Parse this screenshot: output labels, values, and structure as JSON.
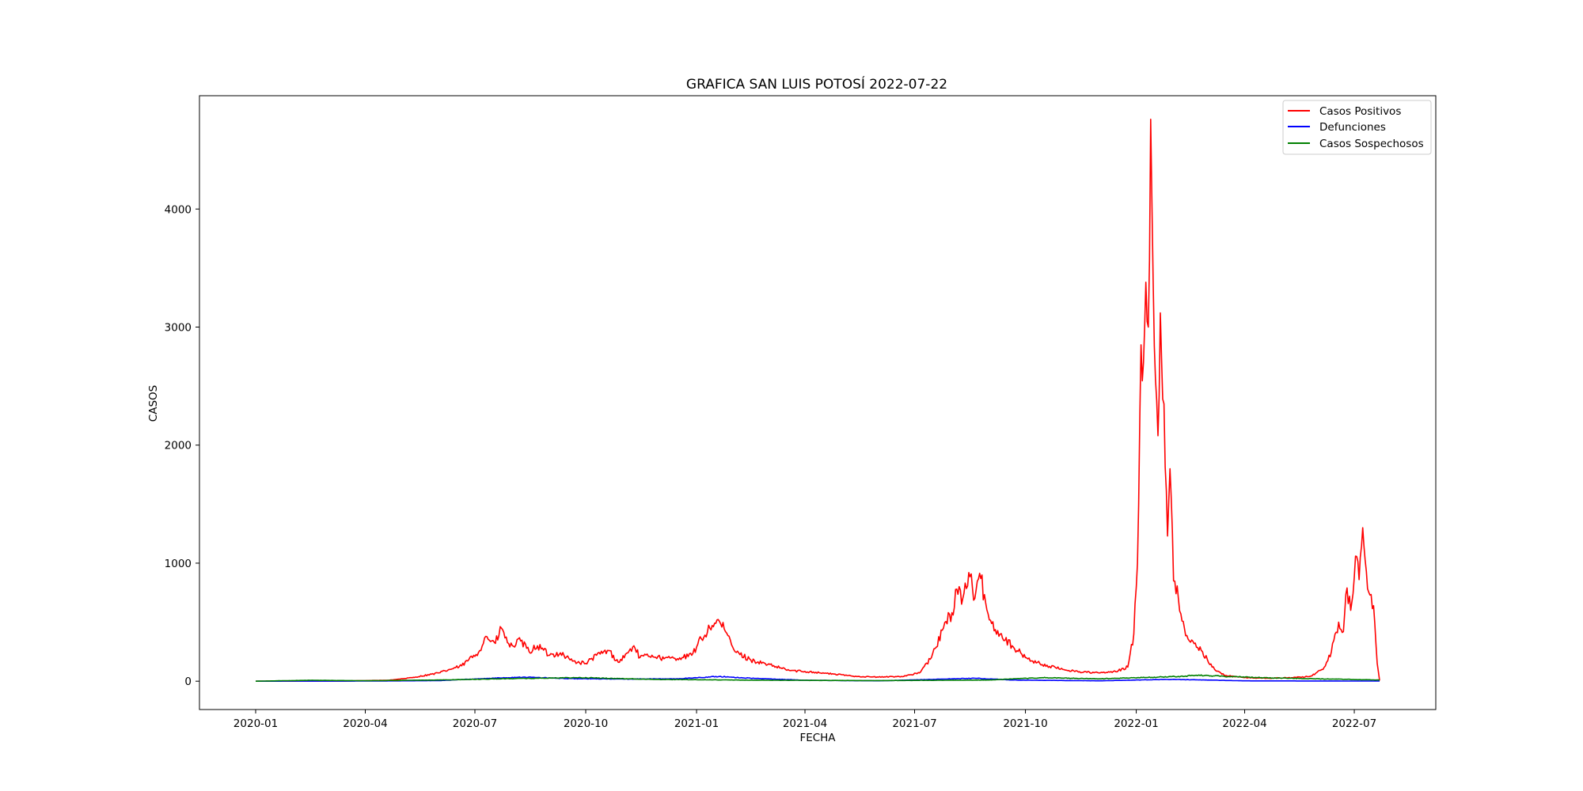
{
  "chart_data": {
    "type": "line",
    "title": "GRAFICA SAN LUIS POTOSÍ 2022-07-22",
    "xlabel": "FECHA",
    "ylabel": "CASOS",
    "x_range": [
      "2020-01-01",
      "2022-07-22"
    ],
    "ylim": [
      -240,
      4960
    ],
    "grid": false,
    "legend_position": "top-right",
    "x_ticks": [
      "2020-01",
      "2020-04",
      "2020-07",
      "2020-10",
      "2021-01",
      "2021-04",
      "2021-07",
      "2021-10",
      "2022-01",
      "2022-04",
      "2022-07"
    ],
    "y_ticks": [
      0,
      1000,
      2000,
      3000,
      4000
    ],
    "series": [
      {
        "name": "Casos Positivos",
        "color": "#ff0000",
        "points": [
          [
            "2020-01-01",
            0
          ],
          [
            "2020-03-15",
            2
          ],
          [
            "2020-04-20",
            8
          ],
          [
            "2020-05-10",
            30
          ],
          [
            "2020-06-01",
            70
          ],
          [
            "2020-06-20",
            130
          ],
          [
            "2020-07-05",
            260
          ],
          [
            "2020-07-10",
            380
          ],
          [
            "2020-07-18",
            320
          ],
          [
            "2020-07-23",
            450
          ],
          [
            "2020-07-30",
            290
          ],
          [
            "2020-08-08",
            340
          ],
          [
            "2020-08-15",
            250
          ],
          [
            "2020-08-22",
            300
          ],
          [
            "2020-09-01",
            220
          ],
          [
            "2020-09-10",
            240
          ],
          [
            "2020-09-20",
            170
          ],
          [
            "2020-10-01",
            150
          ],
          [
            "2020-10-10",
            220
          ],
          [
            "2020-10-20",
            260
          ],
          [
            "2020-10-28",
            160
          ],
          [
            "2020-11-05",
            240
          ],
          [
            "2020-11-10",
            300
          ],
          [
            "2020-11-15",
            200
          ],
          [
            "2020-11-25",
            220
          ],
          [
            "2020-12-05",
            190
          ],
          [
            "2020-12-20",
            200
          ],
          [
            "2020-12-28",
            220
          ],
          [
            "2021-01-05",
            360
          ],
          [
            "2021-01-12",
            450
          ],
          [
            "2021-01-18",
            520
          ],
          [
            "2021-01-25",
            420
          ],
          [
            "2021-02-02",
            250
          ],
          [
            "2021-02-15",
            180
          ],
          [
            "2021-03-01",
            140
          ],
          [
            "2021-03-20",
            90
          ],
          [
            "2021-04-05",
            80
          ],
          [
            "2021-04-25",
            60
          ],
          [
            "2021-05-15",
            40
          ],
          [
            "2021-06-01",
            35
          ],
          [
            "2021-06-20",
            40
          ],
          [
            "2021-07-05",
            70
          ],
          [
            "2021-07-15",
            200
          ],
          [
            "2021-07-25",
            450
          ],
          [
            "2021-08-01",
            580
          ],
          [
            "2021-08-05",
            780
          ],
          [
            "2021-08-10",
            700
          ],
          [
            "2021-08-15",
            920
          ],
          [
            "2021-08-20",
            700
          ],
          [
            "2021-08-25",
            870
          ],
          [
            "2021-09-01",
            520
          ],
          [
            "2021-09-10",
            400
          ],
          [
            "2021-09-20",
            300
          ],
          [
            "2021-10-01",
            200
          ],
          [
            "2021-10-15",
            140
          ],
          [
            "2021-11-01",
            100
          ],
          [
            "2021-11-15",
            80
          ],
          [
            "2021-12-01",
            70
          ],
          [
            "2021-12-15",
            80
          ],
          [
            "2021-12-25",
            120
          ],
          [
            "2021-12-30",
            400
          ],
          [
            "2022-01-02",
            1000
          ],
          [
            "2022-01-05",
            2850
          ],
          [
            "2022-01-07",
            2700
          ],
          [
            "2022-01-09",
            3380
          ],
          [
            "2022-01-11",
            3000
          ],
          [
            "2022-01-13",
            4760
          ],
          [
            "2022-01-15",
            3400
          ],
          [
            "2022-01-17",
            2550
          ],
          [
            "2022-01-19",
            2080
          ],
          [
            "2022-01-21",
            3120
          ],
          [
            "2022-01-24",
            2350
          ],
          [
            "2022-01-27",
            1230
          ],
          [
            "2022-01-29",
            1800
          ],
          [
            "2022-02-01",
            850
          ],
          [
            "2022-02-05",
            700
          ],
          [
            "2022-02-10",
            450
          ],
          [
            "2022-02-15",
            330
          ],
          [
            "2022-02-25",
            250
          ],
          [
            "2022-03-05",
            120
          ],
          [
            "2022-03-15",
            50
          ],
          [
            "2022-04-01",
            30
          ],
          [
            "2022-04-20",
            25
          ],
          [
            "2022-05-10",
            30
          ],
          [
            "2022-05-25",
            40
          ],
          [
            "2022-06-05",
            100
          ],
          [
            "2022-06-12",
            250
          ],
          [
            "2022-06-18",
            500
          ],
          [
            "2022-06-22",
            420
          ],
          [
            "2022-06-25",
            790
          ],
          [
            "2022-06-28",
            600
          ],
          [
            "2022-07-02",
            1060
          ],
          [
            "2022-07-05",
            860
          ],
          [
            "2022-07-08",
            1300
          ],
          [
            "2022-07-11",
            930
          ],
          [
            "2022-07-14",
            730
          ],
          [
            "2022-07-17",
            640
          ],
          [
            "2022-07-20",
            150
          ],
          [
            "2022-07-22",
            5
          ]
        ]
      },
      {
        "name": "Defunciones",
        "color": "#0000ff",
        "points": [
          [
            "2020-01-01",
            0
          ],
          [
            "2020-04-01",
            1
          ],
          [
            "2020-06-01",
            5
          ],
          [
            "2020-07-15",
            25
          ],
          [
            "2020-08-10",
            35
          ],
          [
            "2020-09-15",
            22
          ],
          [
            "2020-11-01",
            18
          ],
          [
            "2020-12-15",
            20
          ],
          [
            "2021-01-20",
            40
          ],
          [
            "2021-02-15",
            25
          ],
          [
            "2021-04-01",
            8
          ],
          [
            "2021-06-01",
            3
          ],
          [
            "2021-08-20",
            25
          ],
          [
            "2021-09-20",
            10
          ],
          [
            "2021-12-01",
            3
          ],
          [
            "2022-01-25",
            15
          ],
          [
            "2022-02-20",
            12
          ],
          [
            "2022-04-01",
            3
          ],
          [
            "2022-07-22",
            1
          ]
        ]
      },
      {
        "name": "Casos Sospechosos",
        "color": "#008000",
        "points": [
          [
            "2020-01-01",
            0
          ],
          [
            "2020-02-15",
            8
          ],
          [
            "2020-04-01",
            4
          ],
          [
            "2020-06-01",
            10
          ],
          [
            "2020-07-20",
            20
          ],
          [
            "2020-09-25",
            30
          ],
          [
            "2020-12-01",
            15
          ],
          [
            "2021-03-01",
            8
          ],
          [
            "2021-06-01",
            5
          ],
          [
            "2021-09-01",
            10
          ],
          [
            "2021-10-15",
            30
          ],
          [
            "2021-12-01",
            20
          ],
          [
            "2022-02-05",
            40
          ],
          [
            "2022-02-20",
            50
          ],
          [
            "2022-04-15",
            30
          ],
          [
            "2022-06-01",
            20
          ],
          [
            "2022-07-22",
            10
          ]
        ]
      }
    ]
  }
}
